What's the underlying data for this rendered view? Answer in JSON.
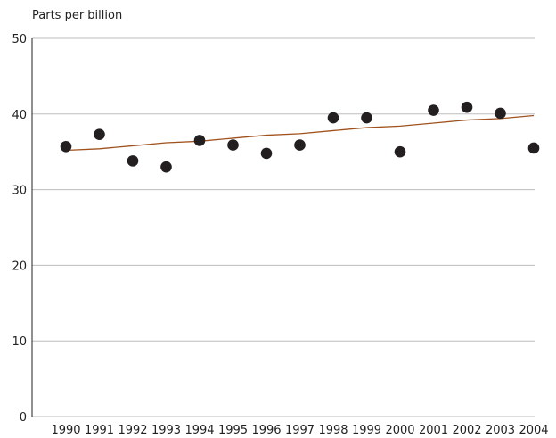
{
  "chart_data": {
    "type": "scatter",
    "title": "",
    "xlabel": "",
    "ylabel": "Parts per billion",
    "ylim": [
      0,
      50
    ],
    "yticks": [
      0,
      10,
      20,
      30,
      40,
      50
    ],
    "grid": "horizontal",
    "legend": "none",
    "x": [
      "1990",
      "1991",
      "1992",
      "1993",
      "1994",
      "1995",
      "1996",
      "1997",
      "1998",
      "1999",
      "2000",
      "2001",
      "2002",
      "2003",
      "2004"
    ],
    "series": [
      {
        "kind": "points",
        "values": [
          35.7,
          37.3,
          33.8,
          33.0,
          36.5,
          35.9,
          34.8,
          35.9,
          39.5,
          39.5,
          35.0,
          40.5,
          40.9,
          40.1,
          35.5
        ],
        "color": "#231f20"
      },
      {
        "kind": "trend-line",
        "values": [
          35.2,
          35.4,
          35.8,
          36.2,
          36.4,
          36.8,
          37.2,
          37.4,
          37.8,
          38.2,
          38.4,
          38.8,
          39.2,
          39.4,
          39.8
        ],
        "color": "#a0521e"
      }
    ]
  }
}
